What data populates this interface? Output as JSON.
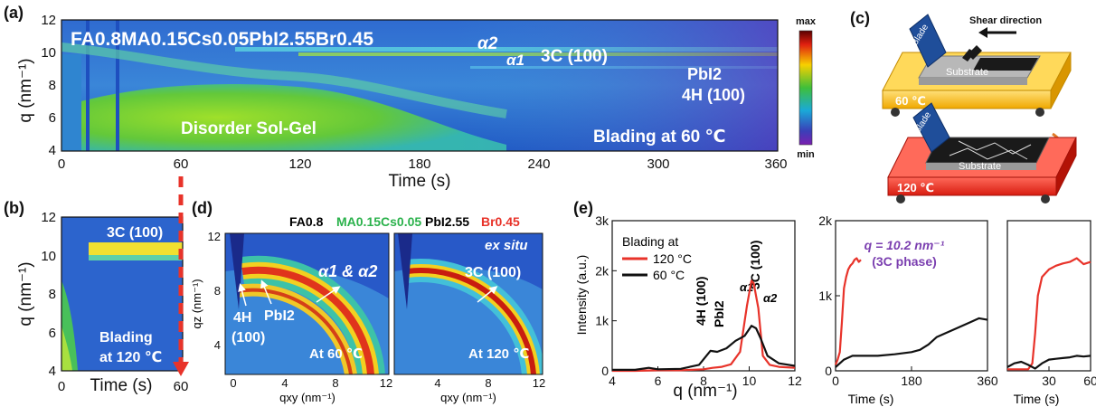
{
  "panel_a": {
    "label": "(a)",
    "title": "FA0.8MA0.15Cs0.05PbI2.55Br0.45",
    "ylabel": "q (nm⁻¹)",
    "xlabel": "Time (s)",
    "xticks": [
      "0",
      "60",
      "120",
      "180",
      "240",
      "300",
      "360"
    ],
    "yticks": [
      "4",
      "6",
      "8",
      "10",
      "12"
    ],
    "annotations": {
      "alpha2": "α2",
      "alpha1": "α1",
      "phase_3c": "3C (100)",
      "pbi2": "PbI2",
      "phase_4h": "4H (100)",
      "solgel": "Disorder Sol-Gel",
      "blading": "Blading at 60 ℃"
    },
    "colorbar_max": "max",
    "colorbar_min": "min"
  },
  "panel_b": {
    "label": "(b)",
    "ylabel": "q (nm⁻¹)",
    "xlabel": "Time (s)",
    "xticks": [
      "0",
      "60"
    ],
    "yticks": [
      "4",
      "6",
      "8",
      "10",
      "12"
    ],
    "annotations": {
      "phase_3c": "3C (100)",
      "blading_1": "Blading",
      "blading_2": "at 120 ℃"
    }
  },
  "panel_c": {
    "label": "(c)",
    "blade": "Blade",
    "shear": "Shear direction",
    "substrate": "Substrate",
    "temp_top": "60 ℃",
    "temp_bottom": "120 ℃"
  },
  "panel_d": {
    "label": "(d)",
    "formula": {
      "fa": "FA0.8",
      "ma_cs": "MA0.15Cs0.05",
      "pbi": "PbI2.55",
      "br": "Br0.45"
    },
    "ylabel": "qz (nm⁻¹)",
    "xlabel": "qxy (nm⁻¹)",
    "xticks_left": [
      "0",
      "4",
      "8",
      "12"
    ],
    "xticks_right": [
      "4",
      "8",
      "12"
    ],
    "yticks": [
      "4",
      "8",
      "12"
    ],
    "left": {
      "alpha": "α1 & α2",
      "h4_1": "4H",
      "h4_2": "(100)",
      "pbi2": "PbI2",
      "temp": "At 60 ℃"
    },
    "right": {
      "exsitu": "ex situ",
      "phase_3c": "3C (100)",
      "temp": "At 120 ℃"
    },
    "colors": {
      "fa": "#111111",
      "ma_cs": "#2bb24c",
      "pbi": "#111111",
      "br": "#e8332a"
    }
  },
  "panel_e": {
    "label": "(e)",
    "ylabel": "Intensity (a.u.)",
    "xlabel": "q (nm⁻¹)",
    "time_xlabel": "Time (s)",
    "legend_title": "Blading at",
    "legend_120": "120 °C",
    "legend_60": "60 °C",
    "peaks": {
      "h4_1": "4H (100)",
      "pbi2": "PbI2",
      "alpha1": "α1",
      "c3": "3C (100)",
      "alpha2": "α2"
    },
    "q_note_1": "q = 10.2 nm⁻¹",
    "q_note_2": "(3C phase)"
  },
  "chart_data": [
    {
      "type": "line",
      "panel": "(e) left",
      "xlabel": "q (nm⁻¹)",
      "ylabel": "Intensity (a.u.)",
      "xlim": [
        4,
        12
      ],
      "ylim": [
        0,
        3000
      ],
      "x_ticks": [
        "4",
        "6",
        "8",
        "10",
        "12"
      ],
      "y_ticks": [
        "0",
        "1k",
        "2k",
        "3k"
      ],
      "series": [
        {
          "name": "120 °C",
          "color": "#e8332a",
          "x": [
            4.0,
            5.0,
            6.0,
            7.0,
            8.0,
            8.4,
            8.8,
            9.2,
            9.6,
            9.9,
            10.1,
            10.2,
            10.4,
            10.6,
            10.9,
            11.3,
            12.0
          ],
          "y": [
            0,
            0,
            10,
            10,
            30,
            60,
            80,
            130,
            380,
            1300,
            1800,
            1750,
            1250,
            300,
            120,
            80,
            60
          ]
        },
        {
          "name": "60 °C",
          "color": "#111111",
          "x": [
            4.0,
            5.0,
            5.6,
            6.0,
            7.0,
            7.8,
            8.3,
            8.6,
            9.0,
            9.4,
            9.8,
            10.1,
            10.3,
            10.5,
            10.8,
            11.3,
            12.0
          ],
          "y": [
            20,
            20,
            60,
            30,
            40,
            120,
            400,
            380,
            450,
            600,
            700,
            900,
            850,
            650,
            300,
            150,
            100
          ]
        }
      ]
    },
    {
      "type": "line",
      "panel": "(e) middle",
      "xlabel": "Time (s)",
      "xlim": [
        0,
        360
      ],
      "ylim": [
        0,
        2000
      ],
      "x_ticks": [
        "0",
        "180",
        "360"
      ],
      "y_ticks": [
        "0",
        "1k",
        "2k"
      ],
      "series": [
        {
          "name": "120 °C",
          "color": "#e8332a",
          "x": [
            0,
            5,
            10,
            15,
            20,
            25,
            30,
            35,
            40,
            45,
            50,
            55,
            60
          ],
          "y": [
            80,
            150,
            250,
            650,
            1100,
            1250,
            1350,
            1400,
            1430,
            1480,
            1500,
            1450,
            1480
          ]
        },
        {
          "name": "60 °C",
          "color": "#111111",
          "x": [
            0,
            20,
            40,
            60,
            100,
            140,
            180,
            200,
            220,
            240,
            260,
            280,
            300,
            320,
            340,
            360
          ],
          "y": [
            50,
            150,
            200,
            200,
            200,
            220,
            250,
            280,
            350,
            450,
            500,
            550,
            600,
            650,
            700,
            680
          ]
        }
      ]
    },
    {
      "type": "line",
      "panel": "(e) right",
      "xlabel": "Time (s)",
      "xlim": [
        0,
        60
      ],
      "ylim": [
        0,
        2000
      ],
      "x_ticks": [
        "30",
        "60"
      ],
      "series": [
        {
          "name": "120 °C",
          "color": "#e8332a",
          "x": [
            0,
            10,
            15,
            18,
            20,
            22,
            25,
            30,
            35,
            40,
            45,
            50,
            55,
            60
          ],
          "y": [
            20,
            20,
            20,
            100,
            500,
            1000,
            1250,
            1350,
            1400,
            1430,
            1450,
            1500,
            1420,
            1450
          ]
        },
        {
          "name": "60 °C",
          "color": "#111111",
          "x": [
            0,
            5,
            10,
            15,
            20,
            25,
            30,
            35,
            40,
            45,
            50,
            55,
            60
          ],
          "y": [
            50,
            100,
            120,
            80,
            30,
            100,
            150,
            160,
            170,
            180,
            200,
            190,
            200
          ]
        }
      ]
    }
  ]
}
